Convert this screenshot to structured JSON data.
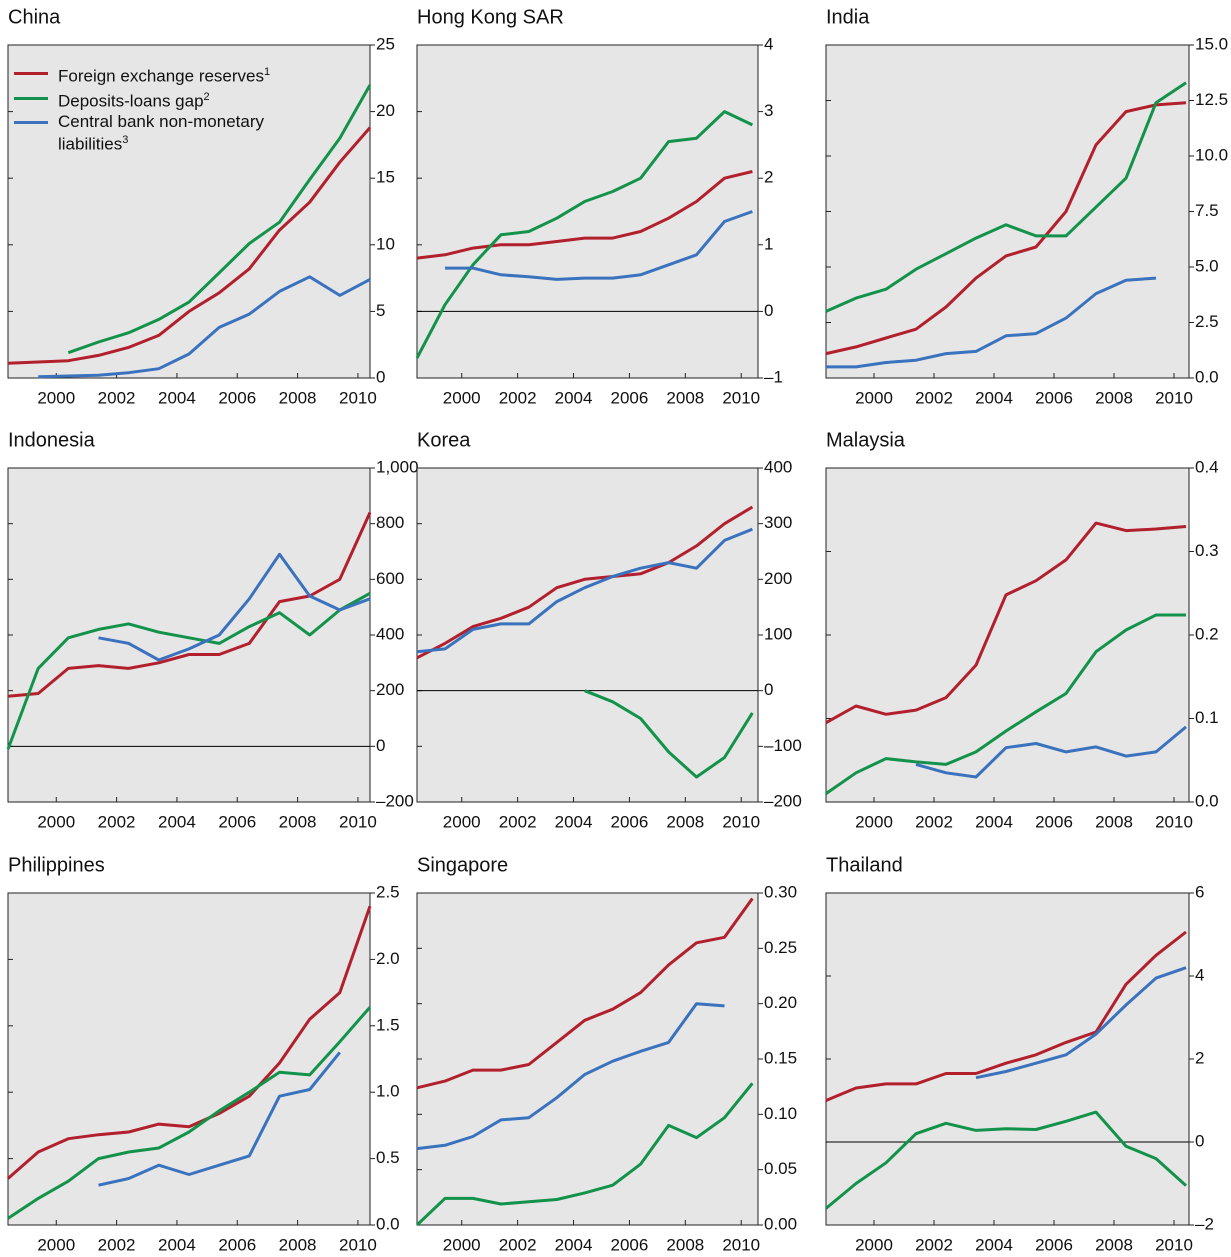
{
  "chart_data": [
    {
      "type": "line",
      "title": "China",
      "xlim": [
        1998.4,
        2010.4
      ],
      "ylim": [
        0,
        25
      ],
      "yticks": [
        0,
        5,
        10,
        15,
        20,
        25
      ],
      "x": [
        1998.4,
        1999.4,
        2000.4,
        2001.4,
        2002.4,
        2003.4,
        2004.4,
        2005.4,
        2006.4,
        2007.4,
        2008.4,
        2009.4,
        2010.4
      ],
      "xticks": [
        2000,
        2002,
        2004,
        2006,
        2008,
        2010
      ],
      "legend": "top-left",
      "series": [
        {
          "name": "Foreign exchange reserves",
          "footnote": "1",
          "color": "#b21f2d",
          "values": [
            1.1,
            1.2,
            1.3,
            1.7,
            2.3,
            3.2,
            5.0,
            6.4,
            8.2,
            11.1,
            13.2,
            16.2,
            18.8
          ]
        },
        {
          "name": "Deposits-loans gap",
          "footnote": "2",
          "color": "#12924a",
          "values": [
            null,
            null,
            1.9,
            2.7,
            3.4,
            4.4,
            5.7,
            7.9,
            10.1,
            11.7,
            14.9,
            18.0,
            22.0
          ]
        },
        {
          "name": "Central bank non-monetary liabilities",
          "footnote": "3",
          "color": "#3a72be",
          "values": [
            null,
            0.1,
            0.15,
            0.2,
            0.4,
            0.7,
            1.8,
            3.8,
            4.8,
            6.5,
            7.6,
            6.2,
            7.4
          ]
        }
      ]
    },
    {
      "type": "line",
      "title": "Hong Kong SAR",
      "xlim": [
        1998.4,
        2010.6
      ],
      "ylim": [
        -1,
        4
      ],
      "yticks": [
        {
          "value": -1,
          "label": "–1"
        },
        0,
        1,
        2,
        3,
        4
      ],
      "zero_line": true,
      "x": [
        1998.4,
        1999.4,
        2000.4,
        2001.4,
        2002.4,
        2003.4,
        2004.4,
        2005.4,
        2006.4,
        2007.4,
        2008.4,
        2009.4,
        2010.4
      ],
      "xticks": [
        2000,
        2002,
        2004,
        2006,
        2008,
        2010
      ],
      "series": [
        {
          "color": "#b21f2d",
          "values": [
            0.8,
            0.85,
            0.95,
            1.0,
            1.0,
            1.05,
            1.1,
            1.1,
            1.2,
            1.4,
            1.65,
            2.0,
            2.1
          ]
        },
        {
          "color": "#12924a",
          "values": [
            -0.7,
            0.1,
            0.7,
            1.15,
            1.2,
            1.4,
            1.65,
            1.8,
            2.0,
            2.55,
            2.6,
            3.0,
            2.8
          ]
        },
        {
          "color": "#3a72be",
          "values": [
            null,
            0.65,
            0.65,
            0.55,
            0.52,
            0.48,
            0.5,
            0.5,
            0.55,
            0.7,
            0.85,
            1.35,
            1.5
          ]
        }
      ]
    },
    {
      "type": "line",
      "title": "India",
      "xlim": [
        1998.4,
        2010.5
      ],
      "ylim": [
        0,
        15
      ],
      "yticks": [
        {
          "value": 0,
          "label": "0.0"
        },
        {
          "value": 2.5,
          "label": "2.5"
        },
        {
          "value": 5,
          "label": "5.0"
        },
        {
          "value": 7.5,
          "label": "7.5"
        },
        {
          "value": 10,
          "label": "10.0"
        },
        {
          "value": 12.5,
          "label": "12.5"
        },
        {
          "value": 15,
          "label": "15.0"
        }
      ],
      "x": [
        1998.4,
        1999.4,
        2000.4,
        2001.4,
        2002.4,
        2003.4,
        2004.4,
        2005.4,
        2006.4,
        2007.4,
        2008.4,
        2009.4,
        2010.4
      ],
      "xticks": [
        2000,
        2002,
        2004,
        2006,
        2008,
        2010
      ],
      "series": [
        {
          "color": "#b21f2d",
          "values": [
            1.1,
            1.4,
            1.8,
            2.2,
            3.2,
            4.5,
            5.5,
            5.9,
            7.5,
            10.5,
            12.0,
            12.3,
            12.4
          ]
        },
        {
          "color": "#12924a",
          "values": [
            3.0,
            3.6,
            4.0,
            4.9,
            5.6,
            6.3,
            6.9,
            6.4,
            6.4,
            7.7,
            9.0,
            12.4,
            13.3
          ]
        },
        {
          "color": "#3a72be",
          "values": [
            0.5,
            0.5,
            0.7,
            0.8,
            1.1,
            1.2,
            1.9,
            2.0,
            2.7,
            3.8,
            4.4,
            4.5,
            null
          ]
        }
      ]
    },
    {
      "type": "line",
      "title": "Indonesia",
      "xlim": [
        1998.4,
        2010.4
      ],
      "ylim": [
        -200,
        1000
      ],
      "yticks": [
        {
          "value": -200,
          "label": "–200"
        },
        0,
        200,
        400,
        600,
        800,
        {
          "value": 1000,
          "label": "1,000"
        }
      ],
      "zero_line": true,
      "x": [
        1998.4,
        1999.4,
        2000.4,
        2001.4,
        2002.4,
        2003.4,
        2004.4,
        2005.4,
        2006.4,
        2007.4,
        2008.4,
        2009.4,
        2010.4
      ],
      "xticks": [
        2000,
        2002,
        2004,
        2006,
        2008,
        2010
      ],
      "series": [
        {
          "color": "#b21f2d",
          "values": [
            180,
            190,
            280,
            290,
            280,
            300,
            330,
            330,
            370,
            520,
            540,
            600,
            840
          ]
        },
        {
          "color": "#12924a",
          "values": [
            -10,
            280,
            390,
            420,
            440,
            410,
            390,
            370,
            430,
            480,
            400,
            490,
            550
          ]
        },
        {
          "color": "#3a72be",
          "values": [
            null,
            null,
            null,
            390,
            370,
            310,
            350,
            400,
            530,
            690,
            540,
            490,
            530
          ]
        }
      ]
    },
    {
      "type": "line",
      "title": "Korea",
      "xlim": [
        1998.4,
        2010.6
      ],
      "ylim": [
        -200,
        400
      ],
      "yticks": [
        {
          "value": -200,
          "label": "–200"
        },
        {
          "value": -100,
          "label": "–100"
        },
        0,
        100,
        200,
        300,
        400
      ],
      "zero_line": true,
      "x": [
        1998.4,
        1999.4,
        2000.4,
        2001.4,
        2002.4,
        2003.4,
        2004.4,
        2005.4,
        2006.4,
        2007.4,
        2008.4,
        2009.4,
        2010.4
      ],
      "xticks": [
        2000,
        2002,
        2004,
        2006,
        2008,
        2010
      ],
      "series": [
        {
          "color": "#b21f2d",
          "values": [
            59,
            85,
            115,
            130,
            150,
            185,
            200,
            205,
            210,
            230,
            260,
            300,
            330
          ]
        },
        {
          "color": "#12924a",
          "values": [
            null,
            null,
            null,
            null,
            null,
            null,
            0,
            -20,
            -50,
            -110,
            -155,
            -120,
            -40
          ]
        },
        {
          "color": "#3a72be",
          "values": [
            70,
            75,
            110,
            120,
            120,
            160,
            185,
            205,
            220,
            230,
            220,
            270,
            290
          ]
        }
      ]
    },
    {
      "type": "line",
      "title": "Malaysia",
      "xlim": [
        1998.4,
        2010.5
      ],
      "ylim": [
        0,
        0.4
      ],
      "yticks": [
        {
          "value": 0,
          "label": "0.0"
        },
        0.1,
        0.2,
        0.3,
        0.4
      ],
      "x": [
        1998.4,
        1999.4,
        2000.4,
        2001.4,
        2002.4,
        2003.4,
        2004.4,
        2005.4,
        2006.4,
        2007.4,
        2008.4,
        2009.4,
        2010.4
      ],
      "xticks": [
        2000,
        2002,
        2004,
        2006,
        2008,
        2010
      ],
      "series": [
        {
          "color": "#b21f2d",
          "values": [
            0.095,
            0.115,
            0.105,
            0.11,
            0.125,
            0.164,
            0.248,
            0.265,
            0.29,
            0.334,
            0.325,
            0.327,
            0.33
          ]
        },
        {
          "color": "#12924a",
          "values": [
            0.01,
            0.035,
            0.052,
            0.048,
            0.045,
            0.06,
            0.085,
            0.108,
            0.13,
            0.18,
            0.206,
            0.224,
            0.224
          ]
        },
        {
          "color": "#3a72be",
          "values": [
            null,
            null,
            null,
            0.045,
            0.035,
            0.03,
            0.065,
            0.07,
            0.06,
            0.066,
            0.055,
            0.06,
            0.09
          ]
        }
      ]
    },
    {
      "type": "line",
      "title": "Philippines",
      "xlim": [
        1998.4,
        2010.4
      ],
      "ylim": [
        0,
        2.5
      ],
      "yticks": [
        {
          "value": 0,
          "label": "0.0"
        },
        0.5,
        {
          "value": 1,
          "label": "1.0"
        },
        1.5,
        {
          "value": 2,
          "label": "2.0"
        },
        2.5
      ],
      "x": [
        1998.4,
        1999.4,
        2000.4,
        2001.4,
        2002.4,
        2003.4,
        2004.4,
        2005.4,
        2006.4,
        2007.4,
        2008.4,
        2009.4,
        2010.4
      ],
      "xticks": [
        2000,
        2002,
        2004,
        2006,
        2008,
        2010
      ],
      "series": [
        {
          "color": "#b21f2d",
          "values": [
            0.35,
            0.55,
            0.65,
            0.68,
            0.7,
            0.76,
            0.74,
            0.84,
            0.97,
            1.22,
            1.55,
            1.75,
            2.4
          ]
        },
        {
          "color": "#12924a",
          "values": [
            0.05,
            0.2,
            0.33,
            0.5,
            0.55,
            0.58,
            0.7,
            0.86,
            1.0,
            1.15,
            1.13,
            1.38,
            1.64
          ]
        },
        {
          "color": "#3a72be",
          "values": [
            null,
            null,
            null,
            0.3,
            0.35,
            0.45,
            0.38,
            0.45,
            0.52,
            0.97,
            1.02,
            1.3,
            null
          ]
        }
      ]
    },
    {
      "type": "line",
      "title": "Singapore",
      "xlim": [
        1998.4,
        2010.6
      ],
      "ylim": [
        0,
        0.3
      ],
      "yticks": [
        {
          "value": 0,
          "label": "0.00"
        },
        {
          "value": 0.05,
          "label": "0.05"
        },
        {
          "value": 0.1,
          "label": "0.10"
        },
        {
          "value": 0.15,
          "label": "0.15"
        },
        {
          "value": 0.2,
          "label": "0.20"
        },
        {
          "value": 0.25,
          "label": "0.25"
        },
        {
          "value": 0.3,
          "label": "0.30"
        }
      ],
      "x": [
        1998.4,
        1999.4,
        2000.4,
        2001.4,
        2002.4,
        2003.4,
        2004.4,
        2005.4,
        2006.4,
        2007.4,
        2008.4,
        2009.4,
        2010.4
      ],
      "xticks": [
        2000,
        2002,
        2004,
        2006,
        2008,
        2010
      ],
      "series": [
        {
          "color": "#b21f2d",
          "values": [
            0.124,
            0.13,
            0.14,
            0.14,
            0.145,
            0.165,
            0.185,
            0.195,
            0.21,
            0.235,
            0.255,
            0.26,
            0.295
          ]
        },
        {
          "color": "#12924a",
          "values": [
            0,
            0.024,
            0.024,
            0.019,
            0.021,
            0.023,
            0.029,
            0.036,
            0.055,
            0.09,
            0.079,
            0.097,
            0.128
          ]
        },
        {
          "color": "#3a72be",
          "values": [
            0.069,
            0.072,
            0.08,
            0.095,
            0.097,
            0.115,
            0.136,
            0.148,
            0.157,
            0.165,
            0.2,
            0.198,
            null
          ]
        }
      ]
    },
    {
      "type": "line",
      "title": "Thailand",
      "xlim": [
        1998.4,
        2010.5
      ],
      "ylim": [
        -2,
        6
      ],
      "yticks": [
        {
          "value": -2,
          "label": "–2"
        },
        0,
        2,
        4,
        6
      ],
      "zero_line": true,
      "x": [
        1998.4,
        1999.4,
        2000.4,
        2001.4,
        2002.4,
        2003.4,
        2004.4,
        2005.4,
        2006.4,
        2007.4,
        2008.4,
        2009.4,
        2010.4
      ],
      "xticks": [
        2000,
        2002,
        2004,
        2006,
        2008,
        2010
      ],
      "series": [
        {
          "color": "#b21f2d",
          "values": [
            1.0,
            1.3,
            1.4,
            1.4,
            1.65,
            1.65,
            1.9,
            2.1,
            2.4,
            2.65,
            3.8,
            4.5,
            5.06
          ]
        },
        {
          "color": "#12924a",
          "values": [
            -1.6,
            -1.0,
            -0.5,
            0.2,
            0.45,
            0.28,
            0.32,
            0.3,
            0.5,
            0.72,
            -0.1,
            -0.4,
            -1.05
          ]
        },
        {
          "color": "#3a72be",
          "values": [
            null,
            null,
            null,
            null,
            null,
            1.55,
            1.7,
            1.9,
            2.1,
            2.6,
            3.3,
            3.95,
            4.2
          ]
        }
      ]
    }
  ]
}
